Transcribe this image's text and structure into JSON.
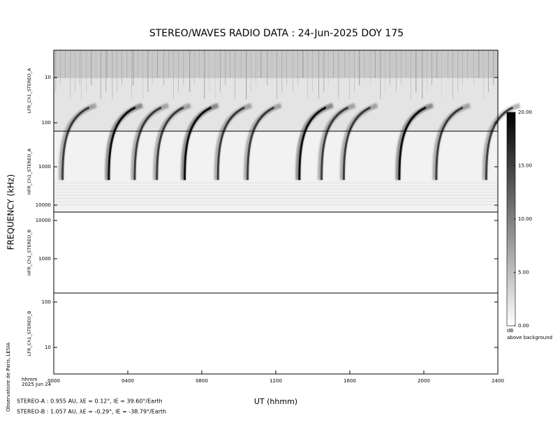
{
  "title": "STEREO/WAVES  RADIO  DATA : 24-Jun-2025  DOY 175",
  "y_label": "FREQUENCY (kHz)",
  "x_label": "UT (hhmm)",
  "x_unit": "hhmm",
  "date": "2025 Jun 24",
  "credit": "Observatoire de Paris, LESIA",
  "x_axis": {
    "xlim": [
      0,
      24
    ],
    "xticks": [
      {
        "value": 0,
        "label": "0000"
      },
      {
        "value": 4,
        "label": "0400"
      },
      {
        "value": 8,
        "label": "0800"
      },
      {
        "value": 12,
        "label": "1200"
      },
      {
        "value": 16,
        "label": "1600"
      },
      {
        "value": 20,
        "label": "2000"
      },
      {
        "value": 24,
        "label": "2400"
      }
    ]
  },
  "panels": [
    {
      "label": "LFR_Ch1_STEREO_A",
      "log": true,
      "ylim": [
        153,
        2.5
      ],
      "yticks": [
        10,
        100
      ]
    },
    {
      "label": "HFR_Ch1_STEREO_A",
      "log": true,
      "ylim": [
        15200,
        118
      ],
      "yticks": [
        1000,
        10000
      ]
    },
    {
      "label": "HFR_Ch1_STEREO_B",
      "log": true,
      "ylim": [
        128,
        16500
      ],
      "yticks": [
        10000,
        1000
      ]
    },
    {
      "label": "LFR_Ch1_STEREO_B",
      "log": true,
      "ylim": [
        2.6,
        158
      ],
      "yticks": [
        100,
        10
      ]
    }
  ],
  "colorbar": {
    "unit": "dB",
    "caption": "above background",
    "lim": [
      0,
      20
    ],
    "ticks": [
      {
        "value": 20,
        "label": "20.00"
      },
      {
        "value": 15,
        "label": "15.00"
      },
      {
        "value": 10,
        "label": "10.00"
      },
      {
        "value": 5,
        "label": "5.00"
      },
      {
        "value": 0,
        "label": "0.00"
      }
    ]
  },
  "footer": [
    "STEREO-A : 0.955 AU, λE = 0.12°, lE = 39.60°/Earth",
    "STEREO-B : 1.057 AU, λE = -0.29°, lE = -38.79°/Earth"
  ]
}
